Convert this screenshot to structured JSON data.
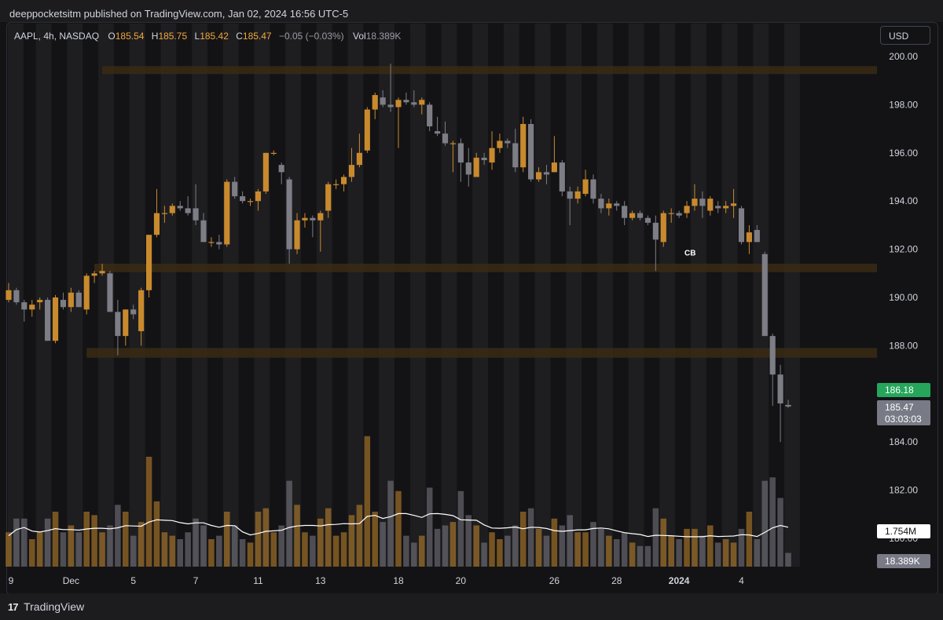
{
  "header": {
    "published_by": "deeppocketsitm published on TradingView.com, Jan 02, 2024 16:56 UTC-5"
  },
  "legend": {
    "symbol": "AAPL, 4h, NASDAQ",
    "o_label": "O",
    "o_value": "185.54",
    "h_label": "H",
    "h_value": "185.75",
    "l_label": "L",
    "l_value": "185.42",
    "c_label": "C",
    "c_value": "185.47",
    "change": "−0.05 (−0.03%)",
    "vol_label": "Vol",
    "vol_value": "18.389K"
  },
  "currency_button": "USD",
  "footer": {
    "brand": "TradingView",
    "logo": "17"
  },
  "colors": {
    "up": "#c98a2e",
    "down": "#7d7d86",
    "zone": "#3a2c14",
    "price_badge_green": "#26a65b",
    "price_badge_gray": "#787b86",
    "volume_ma": "#ffffff",
    "session_band": "#1e1e21"
  },
  "chart_data": {
    "type": "candlestick",
    "symbol": "AAPL",
    "interval": "4h",
    "exchange": "NASDAQ",
    "currency": "USD",
    "ylim": [
      179.2,
      201.0
    ],
    "y_ticks": [
      "200.00",
      "198.00",
      "196.00",
      "194.00",
      "192.00",
      "190.00",
      "188.00",
      "186.00",
      "184.00",
      "182.00",
      "180.00"
    ],
    "x_ticks": [
      "9",
      "Dec",
      "5",
      "7",
      "11",
      "13",
      "18",
      "20",
      "26",
      "28",
      "2024",
      "4"
    ],
    "x_tick_bar_index": [
      0,
      8,
      16,
      24,
      32,
      40,
      50,
      58,
      70,
      78,
      86,
      94
    ],
    "bar_x_range": [
      11,
      1003
    ],
    "zones": [
      {
        "top": 199.6,
        "bottom": 199.3,
        "from_bar": 12
      },
      {
        "top": 191.4,
        "bottom": 191.05,
        "from_bar": 11
      },
      {
        "top": 187.9,
        "bottom": 187.5,
        "from_bar": 10
      }
    ],
    "last_price_label": "185.47",
    "countdown_label": "03:03:03",
    "marked_price_label": "186.18",
    "volume_ma_label": "1.754M",
    "volume_label": "18.389K",
    "annotation": {
      "text": "CB",
      "bar": 87,
      "price": 191.8
    },
    "candles": [
      {
        "o": 189.9,
        "h": 190.6,
        "l": 189.8,
        "c": 190.3,
        "v": 0.5
      },
      {
        "o": 190.3,
        "h": 190.4,
        "l": 189.7,
        "c": 189.8,
        "v": 0.7
      },
      {
        "o": 189.8,
        "h": 189.9,
        "l": 189.0,
        "c": 189.5,
        "v": 0.7
      },
      {
        "o": 189.5,
        "h": 189.9,
        "l": 189.2,
        "c": 189.7,
        "v": 0.4
      },
      {
        "o": 189.8,
        "h": 190.0,
        "l": 189.5,
        "c": 189.9,
        "v": 0.5
      },
      {
        "o": 189.9,
        "h": 190.0,
        "l": 188.2,
        "c": 188.2,
        "v": 0.7
      },
      {
        "o": 188.2,
        "h": 190.1,
        "l": 188.1,
        "c": 190.0,
        "v": 0.8
      },
      {
        "o": 189.9,
        "h": 190.2,
        "l": 189.5,
        "c": 189.6,
        "v": 0.5
      },
      {
        "o": 189.6,
        "h": 190.4,
        "l": 189.4,
        "c": 190.2,
        "v": 0.6
      },
      {
        "o": 190.2,
        "h": 190.3,
        "l": 189.6,
        "c": 189.6,
        "v": 0.5
      },
      {
        "o": 189.5,
        "h": 191.0,
        "l": 189.3,
        "c": 190.9,
        "v": 0.8
      },
      {
        "o": 190.9,
        "h": 191.1,
        "l": 190.6,
        "c": 191.0,
        "v": 0.75
      },
      {
        "o": 191.0,
        "h": 191.4,
        "l": 190.9,
        "c": 191.1,
        "v": 0.5
      },
      {
        "o": 191.0,
        "h": 191.1,
        "l": 189.4,
        "c": 189.4,
        "v": 0.6
      },
      {
        "o": 189.4,
        "h": 189.9,
        "l": 187.6,
        "c": 188.4,
        "v": 0.9
      },
      {
        "o": 188.4,
        "h": 189.5,
        "l": 188.0,
        "c": 189.5,
        "v": 0.8
      },
      {
        "o": 189.5,
        "h": 189.7,
        "l": 189.1,
        "c": 189.3,
        "v": 0.45
      },
      {
        "o": 188.6,
        "h": 190.4,
        "l": 188.0,
        "c": 190.3,
        "v": 0.65
      },
      {
        "o": 190.3,
        "h": 192.6,
        "l": 190.0,
        "c": 192.6,
        "v": 1.6
      },
      {
        "o": 192.6,
        "h": 194.5,
        "l": 192.5,
        "c": 193.5,
        "v": 0.95
      },
      {
        "o": 193.5,
        "h": 193.8,
        "l": 193.1,
        "c": 193.5,
        "v": 0.5
      },
      {
        "o": 193.5,
        "h": 193.9,
        "l": 193.4,
        "c": 193.8,
        "v": 0.45
      },
      {
        "o": 193.8,
        "h": 194.0,
        "l": 193.6,
        "c": 193.7,
        "v": 0.4
      },
      {
        "o": 193.7,
        "h": 194.2,
        "l": 193.4,
        "c": 193.5,
        "v": 0.5
      },
      {
        "o": 193.7,
        "h": 194.7,
        "l": 193.0,
        "c": 193.2,
        "v": 0.7
      },
      {
        "o": 193.2,
        "h": 193.5,
        "l": 192.3,
        "c": 192.3,
        "v": 0.6
      },
      {
        "o": 192.3,
        "h": 192.5,
        "l": 192.1,
        "c": 192.3,
        "v": 0.4
      },
      {
        "o": 192.3,
        "h": 192.6,
        "l": 192.0,
        "c": 192.2,
        "v": 0.45
      },
      {
        "o": 192.2,
        "h": 194.9,
        "l": 192.1,
        "c": 194.8,
        "v": 0.8
      },
      {
        "o": 194.8,
        "h": 195.0,
        "l": 194.1,
        "c": 194.2,
        "v": 0.6
      },
      {
        "o": 194.2,
        "h": 194.4,
        "l": 193.9,
        "c": 194.0,
        "v": 0.4
      },
      {
        "o": 194.0,
        "h": 194.1,
        "l": 193.8,
        "c": 194.0,
        "v": 0.35
      },
      {
        "o": 194.0,
        "h": 194.5,
        "l": 193.6,
        "c": 194.4,
        "v": 0.8
      },
      {
        "o": 194.4,
        "h": 196.0,
        "l": 194.3,
        "c": 196.0,
        "v": 0.85
      },
      {
        "o": 196.0,
        "h": 196.1,
        "l": 195.9,
        "c": 196.0,
        "v": 0.5
      },
      {
        "o": 195.5,
        "h": 195.6,
        "l": 194.7,
        "c": 195.2,
        "v": 0.6
      },
      {
        "o": 194.9,
        "h": 195.0,
        "l": 191.4,
        "c": 192.0,
        "v": 1.25
      },
      {
        "o": 192.0,
        "h": 193.5,
        "l": 191.8,
        "c": 193.2,
        "v": 0.9
      },
      {
        "o": 193.2,
        "h": 193.5,
        "l": 192.9,
        "c": 193.3,
        "v": 0.5
      },
      {
        "o": 193.3,
        "h": 193.4,
        "l": 192.5,
        "c": 193.2,
        "v": 0.45
      },
      {
        "o": 193.2,
        "h": 193.6,
        "l": 191.9,
        "c": 193.5,
        "v": 0.7
      },
      {
        "o": 193.6,
        "h": 194.8,
        "l": 193.3,
        "c": 194.7,
        "v": 0.85
      },
      {
        "o": 194.7,
        "h": 194.9,
        "l": 194.5,
        "c": 194.7,
        "v": 0.45
      },
      {
        "o": 194.7,
        "h": 195.1,
        "l": 194.4,
        "c": 195.0,
        "v": 0.5
      },
      {
        "o": 195.0,
        "h": 196.2,
        "l": 194.8,
        "c": 195.5,
        "v": 0.75
      },
      {
        "o": 195.5,
        "h": 196.8,
        "l": 195.4,
        "c": 196.0,
        "v": 0.9
      },
      {
        "o": 196.1,
        "h": 197.9,
        "l": 196.0,
        "c": 197.8,
        "v": 1.9
      },
      {
        "o": 197.8,
        "h": 198.5,
        "l": 197.4,
        "c": 198.4,
        "v": 0.8
      },
      {
        "o": 198.3,
        "h": 198.6,
        "l": 197.9,
        "c": 198.0,
        "v": 0.65
      },
      {
        "o": 198.0,
        "h": 199.7,
        "l": 197.7,
        "c": 197.9,
        "v": 1.25
      },
      {
        "o": 197.9,
        "h": 198.3,
        "l": 196.2,
        "c": 198.2,
        "v": 1.1
      },
      {
        "o": 198.2,
        "h": 198.5,
        "l": 198.0,
        "c": 198.1,
        "v": 0.45
      },
      {
        "o": 198.1,
        "h": 198.6,
        "l": 197.9,
        "c": 198.0,
        "v": 0.35
      },
      {
        "o": 198.0,
        "h": 198.3,
        "l": 197.6,
        "c": 198.2,
        "v": 0.45
      },
      {
        "o": 198.0,
        "h": 198.1,
        "l": 196.9,
        "c": 197.1,
        "v": 1.15
      },
      {
        "o": 196.9,
        "h": 197.5,
        "l": 196.7,
        "c": 196.8,
        "v": 0.55
      },
      {
        "o": 196.8,
        "h": 197.3,
        "l": 196.3,
        "c": 196.4,
        "v": 0.6
      },
      {
        "o": 196.4,
        "h": 196.5,
        "l": 195.2,
        "c": 196.4,
        "v": 0.65
      },
      {
        "o": 196.4,
        "h": 196.6,
        "l": 194.8,
        "c": 195.6,
        "v": 1.1
      },
      {
        "o": 195.6,
        "h": 196.2,
        "l": 194.6,
        "c": 195.1,
        "v": 0.75
      },
      {
        "o": 195.0,
        "h": 196.0,
        "l": 195.0,
        "c": 195.8,
        "v": 0.6
      },
      {
        "o": 195.8,
        "h": 196.0,
        "l": 195.5,
        "c": 195.7,
        "v": 0.35
      },
      {
        "o": 195.6,
        "h": 196.9,
        "l": 195.3,
        "c": 196.2,
        "v": 0.5
      },
      {
        "o": 196.2,
        "h": 196.8,
        "l": 196.0,
        "c": 196.5,
        "v": 0.4
      },
      {
        "o": 196.5,
        "h": 196.6,
        "l": 196.2,
        "c": 196.4,
        "v": 0.45
      },
      {
        "o": 196.4,
        "h": 197.0,
        "l": 195.2,
        "c": 195.4,
        "v": 0.6
      },
      {
        "o": 195.4,
        "h": 197.5,
        "l": 195.2,
        "c": 197.2,
        "v": 0.8
      },
      {
        "o": 197.2,
        "h": 197.4,
        "l": 194.8,
        "c": 194.9,
        "v": 0.85
      },
      {
        "o": 194.9,
        "h": 195.4,
        "l": 194.8,
        "c": 195.2,
        "v": 0.55
      },
      {
        "o": 195.2,
        "h": 195.5,
        "l": 194.7,
        "c": 195.1,
        "v": 0.45
      },
      {
        "o": 195.2,
        "h": 196.7,
        "l": 195.2,
        "c": 195.6,
        "v": 0.7
      },
      {
        "o": 195.6,
        "h": 195.7,
        "l": 194.2,
        "c": 194.4,
        "v": 0.6
      },
      {
        "o": 194.4,
        "h": 194.6,
        "l": 193.0,
        "c": 194.1,
        "v": 0.75
      },
      {
        "o": 194.1,
        "h": 194.6,
        "l": 193.9,
        "c": 194.4,
        "v": 0.5
      },
      {
        "o": 194.3,
        "h": 195.3,
        "l": 194.2,
        "c": 194.9,
        "v": 0.5
      },
      {
        "o": 194.9,
        "h": 195.1,
        "l": 193.9,
        "c": 194.1,
        "v": 0.65
      },
      {
        "o": 194.1,
        "h": 194.3,
        "l": 193.5,
        "c": 193.7,
        "v": 0.55
      },
      {
        "o": 193.7,
        "h": 194.1,
        "l": 193.4,
        "c": 193.9,
        "v": 0.45
      },
      {
        "o": 193.9,
        "h": 194.0,
        "l": 193.6,
        "c": 193.8,
        "v": 0.4
      },
      {
        "o": 193.8,
        "h": 194.0,
        "l": 193.0,
        "c": 193.3,
        "v": 0.5
      },
      {
        "o": 193.3,
        "h": 193.6,
        "l": 193.2,
        "c": 193.5,
        "v": 0.35
      },
      {
        "o": 193.5,
        "h": 193.6,
        "l": 193.2,
        "c": 193.3,
        "v": 0.3
      },
      {
        "o": 193.3,
        "h": 193.4,
        "l": 193.0,
        "c": 193.1,
        "v": 0.3
      },
      {
        "o": 193.1,
        "h": 193.4,
        "l": 191.1,
        "c": 192.4,
        "v": 0.85
      },
      {
        "o": 192.3,
        "h": 193.6,
        "l": 192.1,
        "c": 193.5,
        "v": 0.7
      },
      {
        "o": 193.5,
        "h": 193.7,
        "l": 193.1,
        "c": 193.5,
        "v": 0.45
      },
      {
        "o": 193.5,
        "h": 193.6,
        "l": 193.3,
        "c": 193.4,
        "v": 0.4
      },
      {
        "o": 193.5,
        "h": 194.0,
        "l": 193.3,
        "c": 193.8,
        "v": 0.55
      },
      {
        "o": 193.8,
        "h": 194.7,
        "l": 193.6,
        "c": 194.1,
        "v": 0.55
      },
      {
        "o": 194.1,
        "h": 194.4,
        "l": 193.3,
        "c": 193.8,
        "v": 0.45
      },
      {
        "o": 193.6,
        "h": 194.2,
        "l": 193.4,
        "c": 194.1,
        "v": 0.6
      },
      {
        "o": 193.8,
        "h": 194.0,
        "l": 193.5,
        "c": 193.7,
        "v": 0.35
      },
      {
        "o": 193.7,
        "h": 194.0,
        "l": 193.5,
        "c": 193.8,
        "v": 0.4
      },
      {
        "o": 193.8,
        "h": 194.5,
        "l": 193.3,
        "c": 193.9,
        "v": 0.35
      },
      {
        "o": 193.7,
        "h": 193.8,
        "l": 192.2,
        "c": 192.3,
        "v": 0.55
      },
      {
        "o": 192.3,
        "h": 193.0,
        "l": 191.8,
        "c": 192.7,
        "v": 0.8
      },
      {
        "o": 192.8,
        "h": 193.0,
        "l": 192.3,
        "c": 192.3,
        "v": 0.4
      },
      {
        "o": 191.8,
        "h": 191.9,
        "l": 188.4,
        "c": 188.4,
        "v": 1.25
      },
      {
        "o": 188.4,
        "h": 188.5,
        "l": 185.5,
        "c": 186.8,
        "v": 1.3
      },
      {
        "o": 186.8,
        "h": 187.2,
        "l": 184.0,
        "c": 185.6,
        "v": 1.0
      },
      {
        "o": 185.54,
        "h": 185.75,
        "l": 185.42,
        "c": 185.47,
        "v": 0.2
      }
    ]
  }
}
